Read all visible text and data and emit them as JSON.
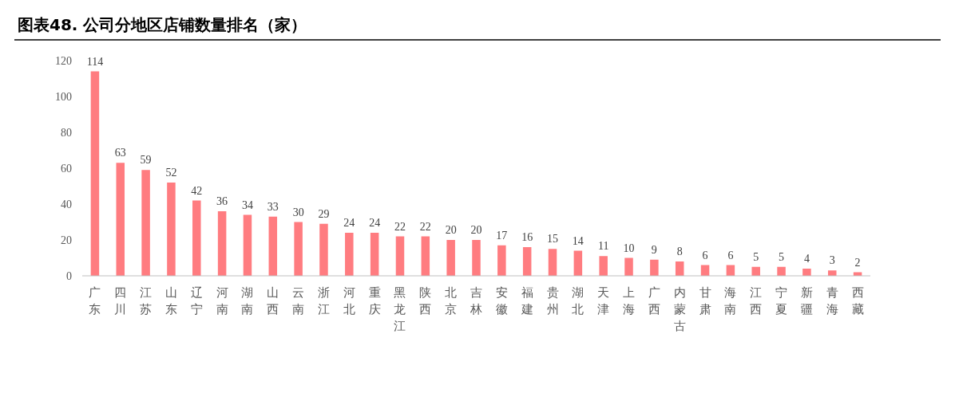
{
  "chart_data": {
    "type": "bar",
    "title": "图表48. 公司分地区店铺数量排名（家）",
    "categories": [
      "广东",
      "四川",
      "江苏",
      "山东",
      "辽宁",
      "河南",
      "湖南",
      "山西",
      "云南",
      "浙江",
      "河北",
      "重庆",
      "黑龙江",
      "陕西",
      "北京",
      "吉林",
      "安徽",
      "福建",
      "贵州",
      "湖北",
      "天津",
      "上海",
      "广西",
      "内蒙古",
      "甘肃",
      "海南",
      "江西",
      "宁夏",
      "新疆",
      "青海",
      "西藏"
    ],
    "values": [
      114,
      63,
      59,
      52,
      42,
      36,
      34,
      33,
      30,
      29,
      24,
      24,
      22,
      22,
      20,
      20,
      17,
      16,
      15,
      14,
      11,
      10,
      9,
      8,
      6,
      6,
      5,
      5,
      4,
      3,
      2
    ],
    "color": "#ff7c80",
    "ylim": [
      0,
      120
    ],
    "yticks": [
      0,
      20,
      40,
      60,
      80,
      100,
      120
    ],
    "data_labels": true,
    "grid": false
  }
}
